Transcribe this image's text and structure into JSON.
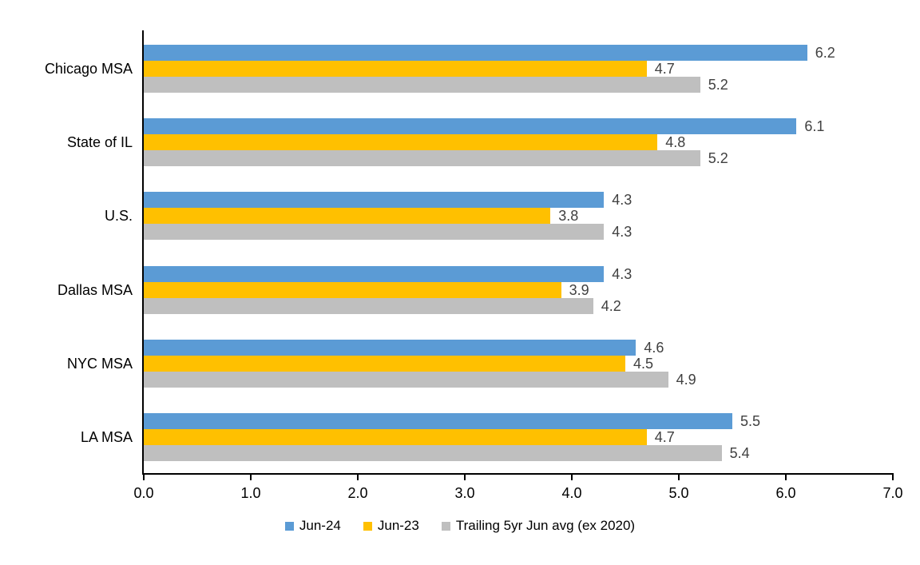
{
  "chart_data": {
    "type": "bar",
    "orientation": "horizontal",
    "title": "",
    "xlabel": "",
    "ylabel": "",
    "xlim": [
      0.0,
      7.0
    ],
    "x_ticks": [
      "0.0",
      "1.0",
      "2.0",
      "3.0",
      "4.0",
      "5.0",
      "6.0",
      "7.0"
    ],
    "grid": false,
    "legend_position": "bottom",
    "data_labels": true,
    "categories": [
      "Chicago MSA",
      "State of IL",
      "U.S.",
      "Dallas MSA",
      "NYC MSA",
      "LA MSA"
    ],
    "series": [
      {
        "name": "Jun-24",
        "color": "#5B9BD5",
        "values": [
          6.2,
          6.1,
          4.3,
          4.3,
          4.6,
          5.5
        ]
      },
      {
        "name": "Jun-23",
        "color": "#FFC000",
        "values": [
          4.7,
          4.8,
          3.8,
          3.9,
          4.5,
          4.7
        ]
      },
      {
        "name": "Trailing 5yr Jun avg (ex 2020)",
        "color": "#BFBFBF",
        "values": [
          5.2,
          5.2,
          4.3,
          4.2,
          4.9,
          5.4
        ]
      }
    ],
    "colors": {
      "axis": "#000000",
      "category_text": "#000000",
      "tick_text": "#000000",
      "value_label_text": "#404040",
      "background": "#FFFFFF"
    }
  }
}
